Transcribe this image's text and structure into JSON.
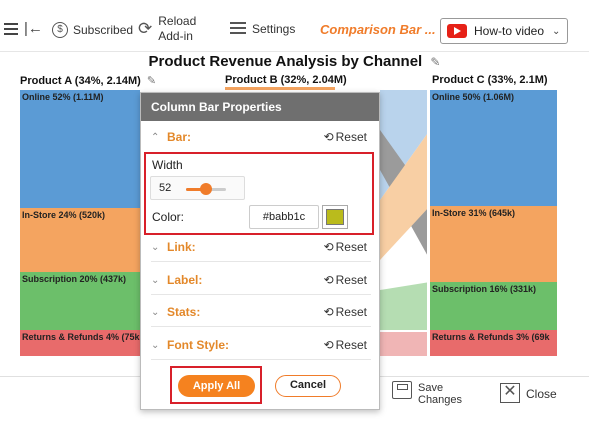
{
  "toolbar": {
    "subscribed": "Subscribed",
    "reload_line1": "Reload",
    "reload_line2": "Add-in",
    "settings": "Settings",
    "chart_name": "Comparison Bar ...",
    "howto": "How-to video"
  },
  "chart": {
    "title": "Product Revenue Analysis by Channel",
    "columns": [
      {
        "title": "Product A (34%, 2.14M)"
      },
      {
        "title": "Product B (32%, 2.04M)"
      },
      {
        "title": "Product C (33%, 2.1M)"
      }
    ],
    "segments_a": [
      {
        "label": "Online 52% (1.11M)"
      },
      {
        "label": "In-Store 24% (520k)"
      },
      {
        "label": "Subscription 20% (437k)"
      },
      {
        "label": "Returns & Refunds 4% (75k"
      }
    ],
    "segments_c": [
      {
        "label": "Online 50% (1.06M)"
      },
      {
        "label": "In-Store 31% (645k)"
      },
      {
        "label": "Subscription 16% (331k)"
      },
      {
        "label": "Returns & Refunds 3% (69k"
      }
    ],
    "colors": {
      "online": "#5b9bd5",
      "instore": "#f4a460",
      "subscription": "#6cbf6a",
      "returns": "#e86b6b",
      "link_online": "#b9d3ec",
      "link_instore": "#f8cfa4",
      "link_sub": "#b5ddb2",
      "link_returns": "#f0b5b5",
      "link_grey": "#9b9b9b"
    }
  },
  "panel": {
    "title": "Column Bar Properties",
    "bar_label": "Bar:",
    "reset": "Reset",
    "width_label": "Width",
    "width_value": "52",
    "color_label": "Color:",
    "color_value": "#babb1c",
    "sections": [
      "Link:",
      "Label:",
      "Stats:",
      "Font Style:"
    ],
    "apply": "Apply All",
    "cancel": "Cancel"
  },
  "bottom": {
    "save": "Save Changes",
    "close": "Close"
  }
}
